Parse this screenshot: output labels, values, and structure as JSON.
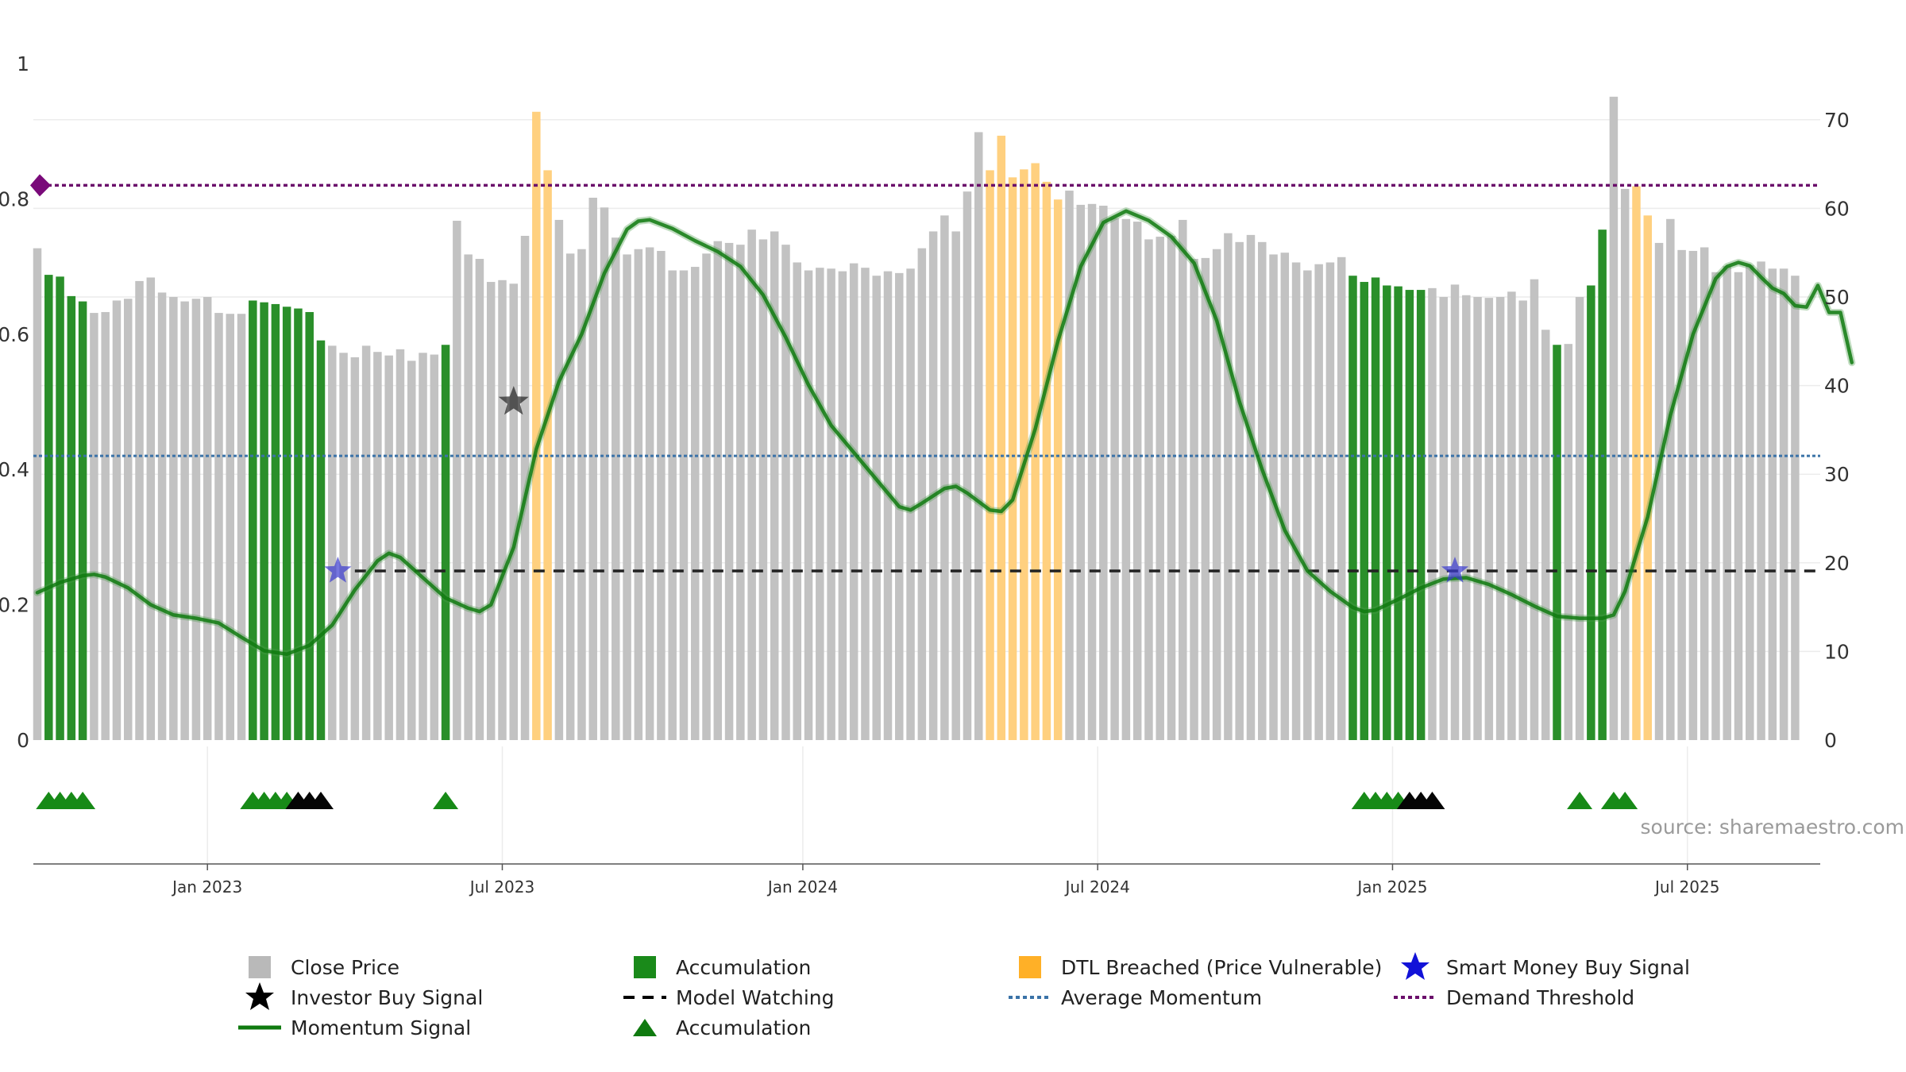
{
  "chart_data": {
    "type": "bar",
    "title": "",
    "source": "source: sharemaestro.com",
    "left_axis": {
      "ylim": [
        0,
        1
      ],
      "ticks": [
        "0",
        "0.2",
        "0.4",
        "0.6",
        "0.8",
        "1"
      ],
      "tick_values": [
        0,
        0.2,
        0.4,
        0.6,
        0.8,
        1
      ]
    },
    "right_axis": {
      "ylim": [
        0,
        76
      ],
      "ticks": [
        "0",
        "10",
        "20",
        "30",
        "40",
        "50",
        "60",
        "70"
      ],
      "tick_values": [
        0,
        10,
        20,
        30,
        40,
        50,
        60,
        70
      ]
    },
    "x_ticks": [
      {
        "label": "Jan 2023",
        "index": 15
      },
      {
        "label": "Jul 2023",
        "index": 41
      },
      {
        "label": "Jan 2024",
        "index": 67.5
      },
      {
        "label": "Jul 2024",
        "index": 93.5
      },
      {
        "label": "Jan 2025",
        "index": 119.5
      },
      {
        "label": "Jul 2025",
        "index": 145.5
      }
    ],
    "close_price": [
      55.5,
      52.5,
      52.3,
      50.1,
      49.5,
      48.2,
      48.3,
      49.6,
      49.8,
      51.8,
      52.2,
      50.5,
      50.0,
      49.5,
      49.8,
      50.0,
      48.2,
      48.1,
      48.1,
      49.6,
      49.4,
      49.2,
      48.9,
      48.7,
      48.3,
      45.1,
      44.5,
      43.7,
      43.2,
      44.5,
      43.8,
      43.4,
      44.1,
      42.8,
      43.7,
      43.5,
      44.6,
      58.6,
      54.8,
      54.3,
      51.7,
      51.9,
      51.5,
      56.9,
      70.9,
      64.3,
      58.7,
      54.9,
      55.4,
      61.2,
      60.1,
      56.7,
      54.8,
      55.4,
      55.6,
      55.2,
      53.0,
      53.0,
      53.4,
      54.9,
      56.3,
      56.1,
      55.9,
      57.6,
      56.5,
      57.4,
      55.9,
      53.9,
      53.0,
      53.3,
      53.2,
      52.9,
      53.8,
      53.3,
      52.4,
      52.9,
      52.7,
      53.2,
      55.5,
      57.4,
      59.2,
      57.4,
      61.9,
      68.6,
      64.3,
      68.2,
      63.5,
      64.4,
      65.1,
      63.0,
      61.0,
      62.0,
      60.4,
      60.5,
      60.3,
      58.9,
      58.8,
      58.5,
      56.5,
      56.8,
      56.9,
      58.7,
      54.3,
      54.4,
      55.4,
      57.2,
      56.2,
      57.0,
      56.2,
      54.8,
      55.0,
      53.9,
      53.0,
      53.7,
      53.9,
      54.5,
      52.4,
      51.7,
      52.2,
      51.3,
      51.2,
      50.8,
      50.8,
      51.0,
      50.0,
      51.4,
      50.2,
      50.0,
      49.9,
      50.0,
      50.6,
      49.6,
      52.0,
      46.3,
      44.6,
      44.7,
      50.0,
      51.3,
      57.6,
      72.6,
      62.2,
      62.5,
      59.2,
      56.1,
      58.8,
      55.3,
      55.2,
      55.6,
      52.8,
      53.5,
      52.8,
      53.6,
      54.0,
      53.2,
      53.2,
      52.4
    ],
    "accumulation_idx": [
      1,
      2,
      3,
      4,
      19,
      20,
      21,
      22,
      23,
      24,
      25,
      36,
      116,
      117,
      118,
      119,
      120,
      121,
      122,
      134,
      137,
      138
    ],
    "dtl_breached_idx": [
      44,
      45,
      84,
      85,
      86,
      87,
      88,
      89,
      90,
      141,
      142
    ],
    "momentum_line": [
      [
        0,
        0.218
      ],
      [
        2,
        0.233
      ],
      [
        4,
        0.243
      ],
      [
        5,
        0.245
      ],
      [
        6,
        0.241
      ],
      [
        8,
        0.225
      ],
      [
        10,
        0.2
      ],
      [
        12,
        0.185
      ],
      [
        14,
        0.18
      ],
      [
        16,
        0.173
      ],
      [
        18,
        0.152
      ],
      [
        20,
        0.132
      ],
      [
        22,
        0.127
      ],
      [
        24,
        0.14
      ],
      [
        26,
        0.17
      ],
      [
        28,
        0.222
      ],
      [
        30,
        0.265
      ],
      [
        31,
        0.276
      ],
      [
        32,
        0.27
      ],
      [
        34,
        0.24
      ],
      [
        36,
        0.21
      ],
      [
        38,
        0.195
      ],
      [
        39,
        0.19
      ],
      [
        40,
        0.2
      ],
      [
        42,
        0.285
      ],
      [
        44,
        0.43
      ],
      [
        46,
        0.53
      ],
      [
        48,
        0.6
      ],
      [
        50,
        0.69
      ],
      [
        52,
        0.755
      ],
      [
        53,
        0.767
      ],
      [
        54,
        0.769
      ],
      [
        56,
        0.756
      ],
      [
        58,
        0.738
      ],
      [
        60,
        0.722
      ],
      [
        62,
        0.7
      ],
      [
        64,
        0.658
      ],
      [
        66,
        0.595
      ],
      [
        68,
        0.525
      ],
      [
        70,
        0.465
      ],
      [
        72,
        0.425
      ],
      [
        74,
        0.385
      ],
      [
        76,
        0.345
      ],
      [
        77,
        0.34
      ],
      [
        78,
        0.35
      ],
      [
        80,
        0.372
      ],
      [
        81,
        0.375
      ],
      [
        82,
        0.365
      ],
      [
        84,
        0.34
      ],
      [
        85,
        0.338
      ],
      [
        86,
        0.355
      ],
      [
        88,
        0.46
      ],
      [
        90,
        0.59
      ],
      [
        92,
        0.7
      ],
      [
        94,
        0.765
      ],
      [
        96,
        0.782
      ],
      [
        98,
        0.768
      ],
      [
        100,
        0.744
      ],
      [
        102,
        0.705
      ],
      [
        104,
        0.62
      ],
      [
        106,
        0.5
      ],
      [
        108,
        0.4
      ],
      [
        110,
        0.31
      ],
      [
        112,
        0.25
      ],
      [
        114,
        0.22
      ],
      [
        116,
        0.196
      ],
      [
        117,
        0.19
      ],
      [
        118,
        0.192
      ],
      [
        120,
        0.208
      ],
      [
        122,
        0.225
      ],
      [
        124,
        0.238
      ],
      [
        126,
        0.24
      ],
      [
        128,
        0.23
      ],
      [
        130,
        0.215
      ],
      [
        132,
        0.198
      ],
      [
        134,
        0.183
      ],
      [
        136,
        0.18
      ],
      [
        138,
        0.18
      ],
      [
        139,
        0.185
      ],
      [
        140,
        0.22
      ],
      [
        142,
        0.33
      ],
      [
        144,
        0.48
      ],
      [
        146,
        0.6
      ],
      [
        148,
        0.682
      ],
      [
        149,
        0.7
      ],
      [
        150,
        0.706
      ],
      [
        151,
        0.701
      ],
      [
        152,
        0.684
      ],
      [
        153,
        0.668
      ],
      [
        154,
        0.66
      ],
      [
        155,
        0.642
      ],
      [
        156,
        0.64
      ],
      [
        157,
        0.672
      ],
      [
        158,
        0.632
      ],
      [
        159,
        0.632
      ],
      [
        160,
        0.558
      ]
    ],
    "average_momentum": 0.42,
    "model_watching_level": 0.25,
    "demand_threshold": 0.82,
    "investor_buy_signals": [
      [
        42,
        0.5
      ]
    ],
    "smart_money_buy_signals": [
      [
        26.5,
        0.25
      ],
      [
        125,
        0.25
      ]
    ],
    "accumulation_markers_green": [
      1,
      2,
      3,
      4,
      19,
      20,
      21,
      22,
      36,
      117,
      118,
      119,
      120,
      136,
      139,
      140
    ],
    "accumulation_markers_black": [
      23,
      24,
      25,
      121,
      122,
      123
    ]
  },
  "legend": [
    {
      "label": "Close Price",
      "icon": "gray-square",
      "color": "#b9b9b9"
    },
    {
      "label": "Accumulation",
      "icon": "green-square",
      "color": "#1a8a1a"
    },
    {
      "label": "DTL Breached (Price Vulnerable)",
      "icon": "orange-square",
      "color": "#ffb027"
    },
    {
      "label": "Smart Money Buy Signal",
      "icon": "blue-star",
      "color": "#1212d8"
    },
    {
      "label": "Investor Buy Signal",
      "icon": "black-star",
      "color": "#000000"
    },
    {
      "label": "Model Watching",
      "icon": "black-dashed-line",
      "color": "#000000"
    },
    {
      "label": "Average Momentum",
      "icon": "blue-dotted-line",
      "color": "#3b73a8"
    },
    {
      "label": "Demand Threshold",
      "icon": "purple-dotted-line",
      "color": "#6b0f6b"
    },
    {
      "label": "Momentum Signal",
      "icon": "green-line",
      "color": "#0f7a0f"
    },
    {
      "label": "Accumulation",
      "icon": "green-triangle",
      "color": "#0f7a0f"
    }
  ]
}
